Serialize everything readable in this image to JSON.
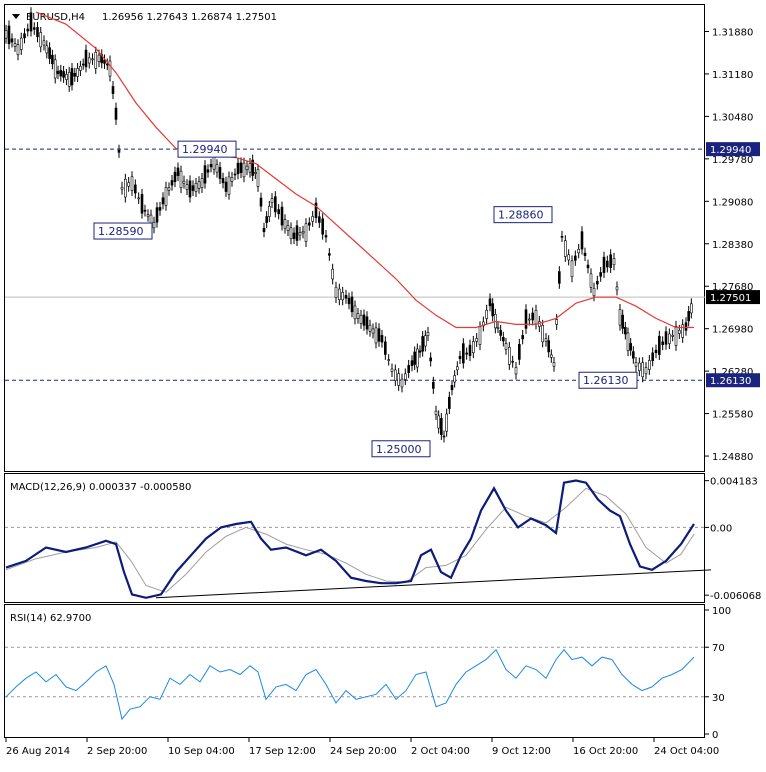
{
  "header": {
    "symbol": "EURUSD,H4",
    "ohlc": "1.26956 1.27643 1.26874 1.27501"
  },
  "colors": {
    "candle": "#000000",
    "ma": "#e53935",
    "level": "#1a237e",
    "macd_main": "#0d1b7a",
    "macd_signal": "#9e9e9e",
    "rsi": "#1e88e5",
    "grid": "#999999"
  },
  "chart_data": [
    {
      "type": "line",
      "name": "price",
      "title": "EURUSD,H4",
      "x": [
        "26 Aug 2014",
        "2 Sep 20:00",
        "10 Sep 04:00",
        "17 Sep 12:00",
        "24 Sep 20:00",
        "2 Oct 04:00",
        "9 Oct 12:00",
        "16 Oct 20:00",
        "24 Oct 04:00"
      ],
      "ylim": [
        1.2465,
        1.323
      ],
      "ytick_labels": [
        "1.31880",
        "1.31180",
        "1.30480",
        "1.29780",
        "1.29080",
        "1.28380",
        "1.27680",
        "1.26980",
        "1.26280",
        "1.25580",
        "1.24880"
      ],
      "ytick_values": [
        1.3188,
        1.3118,
        1.3048,
        1.2978,
        1.2908,
        1.2838,
        1.2768,
        1.2698,
        1.2628,
        1.2558,
        1.2488
      ],
      "series_close_path": [
        [
          0,
          1.3185
        ],
        [
          12,
          1.316
        ],
        [
          25,
          1.32
        ],
        [
          38,
          1.317
        ],
        [
          52,
          1.312
        ],
        [
          66,
          1.311
        ],
        [
          80,
          1.314
        ],
        [
          93,
          1.3145
        ],
        [
          104,
          1.313
        ],
        [
          110,
          1.305
        ],
        [
          116,
          1.293
        ],
        [
          126,
          1.294
        ],
        [
          136,
          1.29
        ],
        [
          148,
          1.287
        ],
        [
          160,
          1.292
        ],
        [
          172,
          1.2955
        ],
        [
          184,
          1.2925
        ],
        [
          196,
          1.294
        ],
        [
          208,
          1.2975
        ],
        [
          220,
          1.293
        ],
        [
          232,
          1.296
        ],
        [
          244,
          1.2965
        ],
        [
          252,
          1.295
        ],
        [
          258,
          1.286
        ],
        [
          266,
          1.291
        ],
        [
          276,
          1.288
        ],
        [
          288,
          1.285
        ],
        [
          300,
          1.286
        ],
        [
          310,
          1.289
        ],
        [
          320,
          1.285
        ],
        [
          330,
          1.276
        ],
        [
          340,
          1.275
        ],
        [
          352,
          1.272
        ],
        [
          364,
          1.27
        ],
        [
          376,
          1.268
        ],
        [
          386,
          1.263
        ],
        [
          396,
          1.261
        ],
        [
          406,
          1.264
        ],
        [
          414,
          1.266
        ],
        [
          422,
          1.269
        ],
        [
          430,
          1.256
        ],
        [
          438,
          1.252
        ],
        [
          446,
          1.26
        ],
        [
          454,
          1.265
        ],
        [
          464,
          1.266
        ],
        [
          474,
          1.269
        ],
        [
          484,
          1.274
        ],
        [
          492,
          1.27
        ],
        [
          500,
          1.267
        ],
        [
          510,
          1.263
        ],
        [
          520,
          1.271
        ],
        [
          530,
          1.272
        ],
        [
          540,
          1.268
        ],
        [
          548,
          1.264
        ],
        [
          556,
          1.285
        ],
        [
          566,
          1.28
        ],
        [
          576,
          1.284
        ],
        [
          588,
          1.276
        ],
        [
          598,
          1.28
        ],
        [
          608,
          1.281
        ],
        [
          614,
          1.272
        ],
        [
          622,
          1.268
        ],
        [
          630,
          1.264
        ],
        [
          640,
          1.263
        ],
        [
          650,
          1.266
        ],
        [
          660,
          1.268
        ],
        [
          670,
          1.269
        ],
        [
          680,
          1.27
        ],
        [
          688,
          1.275
        ]
      ],
      "moving_average_path": [
        [
          30,
          1.322
        ],
        [
          60,
          1.32
        ],
        [
          90,
          1.316
        ],
        [
          110,
          1.312
        ],
        [
          130,
          1.307
        ],
        [
          150,
          1.303
        ],
        [
          170,
          1.2995
        ],
        [
          190,
          1.2985
        ],
        [
          210,
          1.2985
        ],
        [
          230,
          1.298
        ],
        [
          250,
          1.297
        ],
        [
          270,
          1.2945
        ],
        [
          290,
          1.292
        ],
        [
          310,
          1.29
        ],
        [
          330,
          1.287
        ],
        [
          350,
          1.284
        ],
        [
          370,
          1.281
        ],
        [
          390,
          1.278
        ],
        [
          410,
          1.2745
        ],
        [
          430,
          1.272
        ],
        [
          450,
          1.27
        ],
        [
          470,
          1.27
        ],
        [
          490,
          1.271
        ],
        [
          510,
          1.2705
        ],
        [
          530,
          1.2705
        ],
        [
          550,
          1.2715
        ],
        [
          570,
          1.274
        ],
        [
          590,
          1.275
        ],
        [
          610,
          1.275
        ],
        [
          630,
          1.2735
        ],
        [
          650,
          1.2715
        ],
        [
          670,
          1.27
        ],
        [
          688,
          1.27
        ]
      ],
      "levels": [
        {
          "label": "1.29940",
          "value": 1.2994,
          "style": "dashed"
        },
        {
          "label": "1.26130",
          "value": 1.2613,
          "style": "dashed"
        },
        {
          "label": "1.27501",
          "value": 1.27501,
          "style": "solid-light"
        }
      ],
      "annotations": [
        {
          "label": "1.29940",
          "x": 172,
          "value": 1.2994
        },
        {
          "label": "1.28590",
          "x": 88,
          "value": 1.2859
        },
        {
          "label": "1.28860",
          "x": 488,
          "value": 1.2886
        },
        {
          "label": "1.26130",
          "x": 573,
          "value": 1.2613
        },
        {
          "label": "1.25000",
          "x": 366,
          "value": 1.25
        }
      ]
    },
    {
      "type": "line",
      "name": "macd",
      "title": "MACD(12,26,9) 0.000337 -0.000580",
      "ylim": [
        -0.0065,
        0.0046
      ],
      "ytick_labels": [
        "0.004183",
        "0.00",
        "-0.006068"
      ],
      "ytick_values": [
        0.004183,
        0.0,
        -0.006068
      ],
      "macd_path": [
        [
          0,
          -0.0036
        ],
        [
          20,
          -0.003
        ],
        [
          40,
          -0.0018
        ],
        [
          60,
          -0.0022
        ],
        [
          80,
          -0.0018
        ],
        [
          100,
          -0.0012
        ],
        [
          110,
          -0.0015
        ],
        [
          118,
          -0.004
        ],
        [
          126,
          -0.006
        ],
        [
          140,
          -0.0063
        ],
        [
          155,
          -0.006
        ],
        [
          170,
          -0.004
        ],
        [
          185,
          -0.0025
        ],
        [
          200,
          -0.001
        ],
        [
          215,
          0.0
        ],
        [
          230,
          0.0003
        ],
        [
          245,
          0.0005
        ],
        [
          255,
          -0.001
        ],
        [
          265,
          -0.002
        ],
        [
          280,
          -0.0018
        ],
        [
          300,
          -0.0025
        ],
        [
          315,
          -0.002
        ],
        [
          330,
          -0.003
        ],
        [
          345,
          -0.0045
        ],
        [
          360,
          -0.0048
        ],
        [
          375,
          -0.005
        ],
        [
          390,
          -0.005
        ],
        [
          405,
          -0.0048
        ],
        [
          415,
          -0.0025
        ],
        [
          425,
          -0.002
        ],
        [
          435,
          -0.004
        ],
        [
          445,
          -0.0045
        ],
        [
          455,
          -0.0025
        ],
        [
          465,
          -0.001
        ],
        [
          475,
          0.0015
        ],
        [
          488,
          0.0035
        ],
        [
          500,
          0.0015
        ],
        [
          512,
          0.0
        ],
        [
          525,
          0.0008
        ],
        [
          540,
          0.0002
        ],
        [
          550,
          -0.0005
        ],
        [
          558,
          0.004
        ],
        [
          570,
          0.0042
        ],
        [
          580,
          0.004
        ],
        [
          592,
          0.0025
        ],
        [
          604,
          0.0015
        ],
        [
          614,
          0.001
        ],
        [
          624,
          -0.0015
        ],
        [
          634,
          -0.0035
        ],
        [
          646,
          -0.0038
        ],
        [
          660,
          -0.003
        ],
        [
          675,
          -0.0015
        ],
        [
          688,
          0.0003
        ]
      ],
      "signal_path": [
        [
          0,
          -0.0038
        ],
        [
          30,
          -0.0028
        ],
        [
          60,
          -0.0022
        ],
        [
          90,
          -0.0018
        ],
        [
          110,
          -0.0013
        ],
        [
          125,
          -0.003
        ],
        [
          140,
          -0.0052
        ],
        [
          160,
          -0.0058
        ],
        [
          180,
          -0.0042
        ],
        [
          200,
          -0.0022
        ],
        [
          220,
          -0.0008
        ],
        [
          240,
          0.0
        ],
        [
          260,
          -0.0006
        ],
        [
          280,
          -0.0015
        ],
        [
          300,
          -0.002
        ],
        [
          320,
          -0.0024
        ],
        [
          340,
          -0.0032
        ],
        [
          360,
          -0.0042
        ],
        [
          380,
          -0.0048
        ],
        [
          400,
          -0.0049
        ],
        [
          420,
          -0.0036
        ],
        [
          440,
          -0.0034
        ],
        [
          460,
          -0.0025
        ],
        [
          480,
          -0.0002
        ],
        [
          500,
          0.0018
        ],
        [
          520,
          0.001
        ],
        [
          540,
          0.0004
        ],
        [
          560,
          0.0018
        ],
        [
          580,
          0.0035
        ],
        [
          600,
          0.0028
        ],
        [
          620,
          0.0012
        ],
        [
          640,
          -0.0018
        ],
        [
          660,
          -0.0032
        ],
        [
          675,
          -0.0024
        ],
        [
          688,
          -0.0006
        ]
      ],
      "trendline": [
        [
          150,
          -0.0063
        ],
        [
          705,
          -0.0038
        ]
      ]
    },
    {
      "type": "line",
      "name": "rsi",
      "title": "RSI(14) 62.9700",
      "ylim": [
        0,
        100
      ],
      "ytick_labels": [
        "100",
        "70",
        "30",
        "0"
      ],
      "ytick_values": [
        100,
        70,
        30,
        0
      ],
      "rsi_path": [
        [
          0,
          30
        ],
        [
          10,
          38
        ],
        [
          20,
          45
        ],
        [
          30,
          50
        ],
        [
          40,
          42
        ],
        [
          50,
          48
        ],
        [
          60,
          38
        ],
        [
          70,
          35
        ],
        [
          80,
          42
        ],
        [
          90,
          50
        ],
        [
          100,
          55
        ],
        [
          108,
          40
        ],
        [
          116,
          12
        ],
        [
          124,
          20
        ],
        [
          134,
          22
        ],
        [
          144,
          30
        ],
        [
          154,
          28
        ],
        [
          164,
          45
        ],
        [
          174,
          40
        ],
        [
          184,
          48
        ],
        [
          194,
          42
        ],
        [
          204,
          55
        ],
        [
          214,
          50
        ],
        [
          224,
          52
        ],
        [
          234,
          48
        ],
        [
          244,
          55
        ],
        [
          252,
          50
        ],
        [
          260,
          28
        ],
        [
          270,
          38
        ],
        [
          280,
          40
        ],
        [
          290,
          35
        ],
        [
          300,
          48
        ],
        [
          310,
          52
        ],
        [
          320,
          40
        ],
        [
          330,
          25
        ],
        [
          340,
          35
        ],
        [
          350,
          28
        ],
        [
          360,
          30
        ],
        [
          370,
          32
        ],
        [
          380,
          40
        ],
        [
          390,
          28
        ],
        [
          400,
          35
        ],
        [
          410,
          48
        ],
        [
          420,
          50
        ],
        [
          430,
          22
        ],
        [
          440,
          25
        ],
        [
          450,
          40
        ],
        [
          460,
          50
        ],
        [
          470,
          55
        ],
        [
          480,
          60
        ],
        [
          490,
          68
        ],
        [
          500,
          52
        ],
        [
          510,
          45
        ],
        [
          520,
          55
        ],
        [
          530,
          52
        ],
        [
          540,
          45
        ],
        [
          550,
          60
        ],
        [
          558,
          68
        ],
        [
          566,
          60
        ],
        [
          576,
          62
        ],
        [
          586,
          55
        ],
        [
          596,
          62
        ],
        [
          606,
          60
        ],
        [
          616,
          48
        ],
        [
          626,
          40
        ],
        [
          636,
          35
        ],
        [
          646,
          38
        ],
        [
          656,
          45
        ],
        [
          666,
          48
        ],
        [
          676,
          52
        ],
        [
          688,
          62
        ]
      ]
    }
  ],
  "x_axis_labels": [
    "26 Aug 2014",
    "2 Sep 20:00",
    "10 Sep 04:00",
    "17 Sep 12:00",
    "24 Sep 20:00",
    "2 Oct 04:00",
    "9 Oct 12:00",
    "16 Oct 20:00",
    "24 Oct 04:00"
  ]
}
